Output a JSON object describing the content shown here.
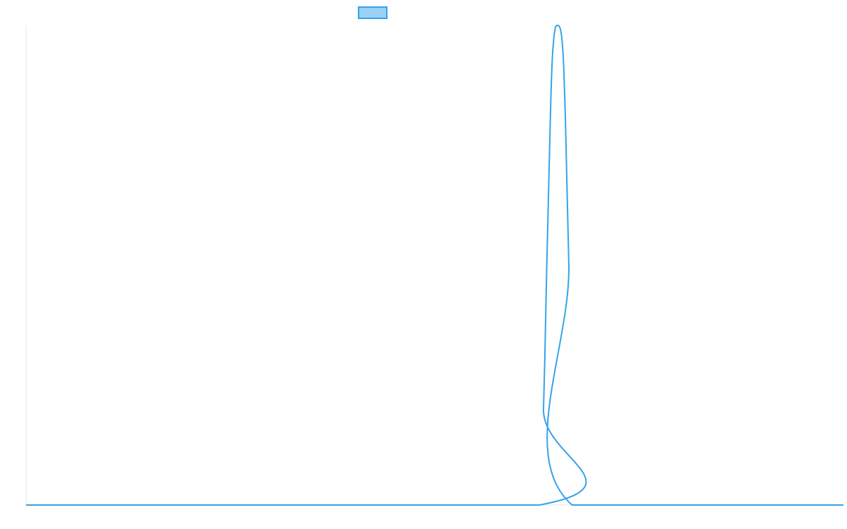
{
  "colors": {
    "series_stroke": "#36a2eb",
    "legend_fill": "#9ad0f5",
    "axis": "#e6e6e6",
    "background": "#ffffff"
  },
  "chart_data": {
    "type": "line",
    "title": "",
    "xlabel": "",
    "ylabel": "",
    "grid": false,
    "legend_position": "top",
    "legend_label": "",
    "xlim": [
      0,
      100
    ],
    "ylim": [
      0,
      1
    ],
    "series": [
      {
        "x": [
          0,
          62.8,
          63.3,
          63.7,
          64.2,
          64.6,
          65.0,
          65.5,
          65.9,
          66.4,
          66.8,
          100
        ],
        "values": [
          0,
          0,
          0.2,
          0.5,
          0.85,
          0.98,
          1.0,
          0.98,
          0.85,
          0.5,
          0.0,
          0
        ]
      }
    ]
  }
}
